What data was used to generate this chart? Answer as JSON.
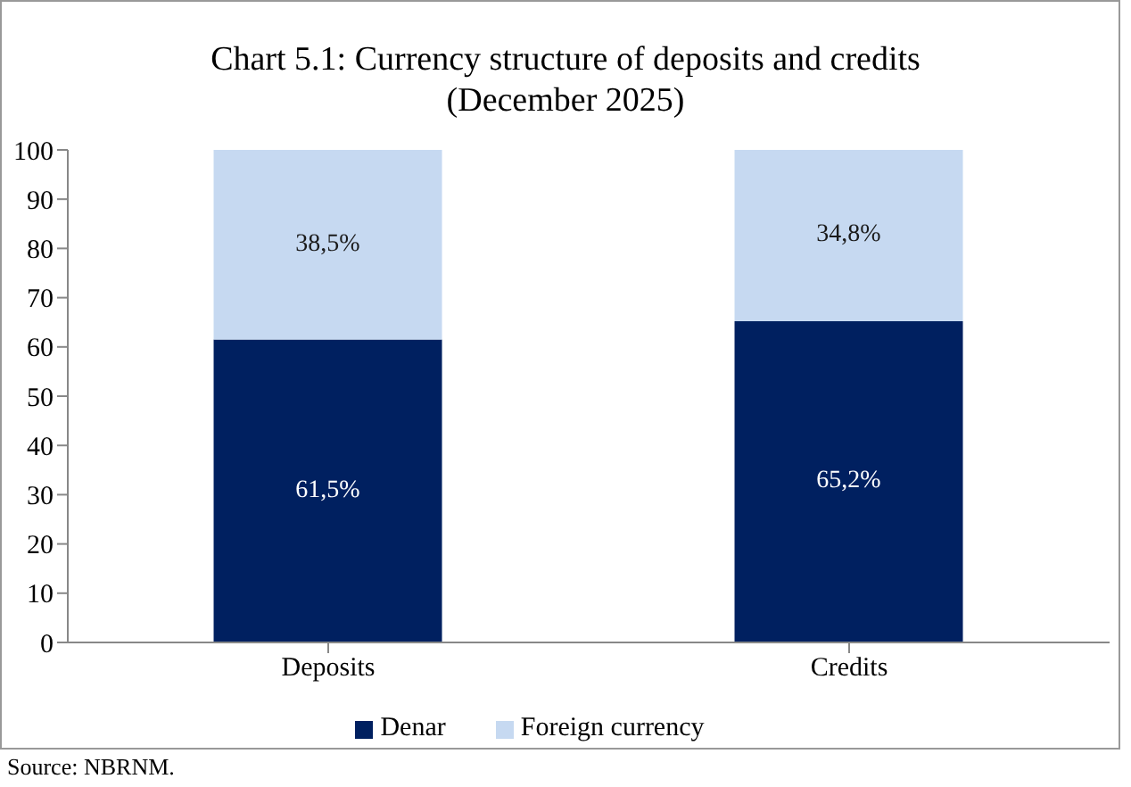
{
  "chart_data": {
    "type": "bar",
    "title": "Chart 5.1: Currency structure of deposits and credits",
    "subtitle": "(December 2025)",
    "categories": [
      "Deposits",
      "Credits"
    ],
    "stacked": true,
    "series": [
      {
        "name": "Denar",
        "color": "#002060",
        "values": [
          61.5,
          65.2
        ],
        "value_labels": [
          "61,5%",
          "65,2%"
        ]
      },
      {
        "name": "Foreign currency",
        "color": "#c6d9f1",
        "values": [
          38.5,
          34.8
        ],
        "value_labels": [
          "38,5%",
          "34,8%"
        ]
      }
    ],
    "ylim": [
      0,
      100
    ],
    "yticks": [
      0,
      10,
      20,
      30,
      40,
      50,
      60,
      70,
      80,
      90,
      100
    ],
    "grid": false,
    "legend": "bottom",
    "annotations": [
      "Source: NBRNM."
    ]
  }
}
